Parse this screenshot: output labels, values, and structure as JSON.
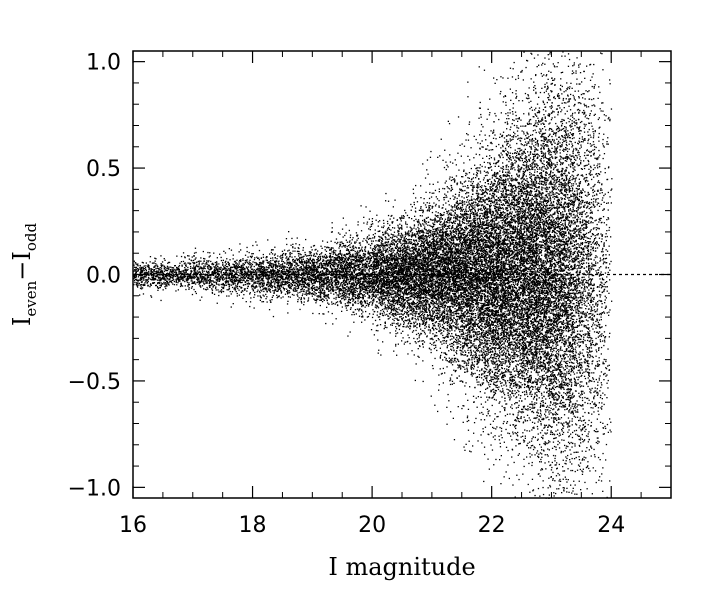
{
  "chart_data": {
    "type": "scatter",
    "title": "",
    "xlabel": "I magnitude",
    "ylabel": {
      "base1": "I",
      "sub1": "even",
      "minus": "−",
      "base2": "I",
      "sub2": "odd"
    },
    "xlim": [
      16,
      25
    ],
    "ylim": [
      -1.05,
      1.05
    ],
    "xticks": [
      16,
      18,
      20,
      22,
      24
    ],
    "xtick_labels": [
      "16",
      "18",
      "20",
      "22",
      "24"
    ],
    "yticks": [
      -1.0,
      -0.5,
      0.0,
      0.5,
      1.0
    ],
    "ytick_labels": [
      "−1.0",
      "−0.5",
      "0.0",
      "0.5",
      "1.0"
    ],
    "reference_line": {
      "y": 0.0,
      "style": "dashed",
      "x_from": 16,
      "x_to": 25
    },
    "grid": false,
    "legend": "none",
    "point_color": "#000000",
    "density_profile": [
      {
        "x": 16.0,
        "y_spread": 0.03,
        "relative_density": 0.25
      },
      {
        "x": 17.0,
        "y_spread": 0.035,
        "relative_density": 0.3
      },
      {
        "x": 18.0,
        "y_spread": 0.045,
        "relative_density": 0.4
      },
      {
        "x": 19.0,
        "y_spread": 0.06,
        "relative_density": 0.6
      },
      {
        "x": 20.0,
        "y_spread": 0.09,
        "relative_density": 1.0
      },
      {
        "x": 21.0,
        "y_spread": 0.15,
        "relative_density": 1.8
      },
      {
        "x": 22.0,
        "y_spread": 0.28,
        "relative_density": 2.8
      },
      {
        "x": 23.0,
        "y_spread": 0.42,
        "relative_density": 3.3
      },
      {
        "x": 23.6,
        "y_spread": 0.5,
        "relative_density": 1.5
      },
      {
        "x": 24.0,
        "y_spread": 0.5,
        "relative_density": 0.15
      }
    ]
  }
}
